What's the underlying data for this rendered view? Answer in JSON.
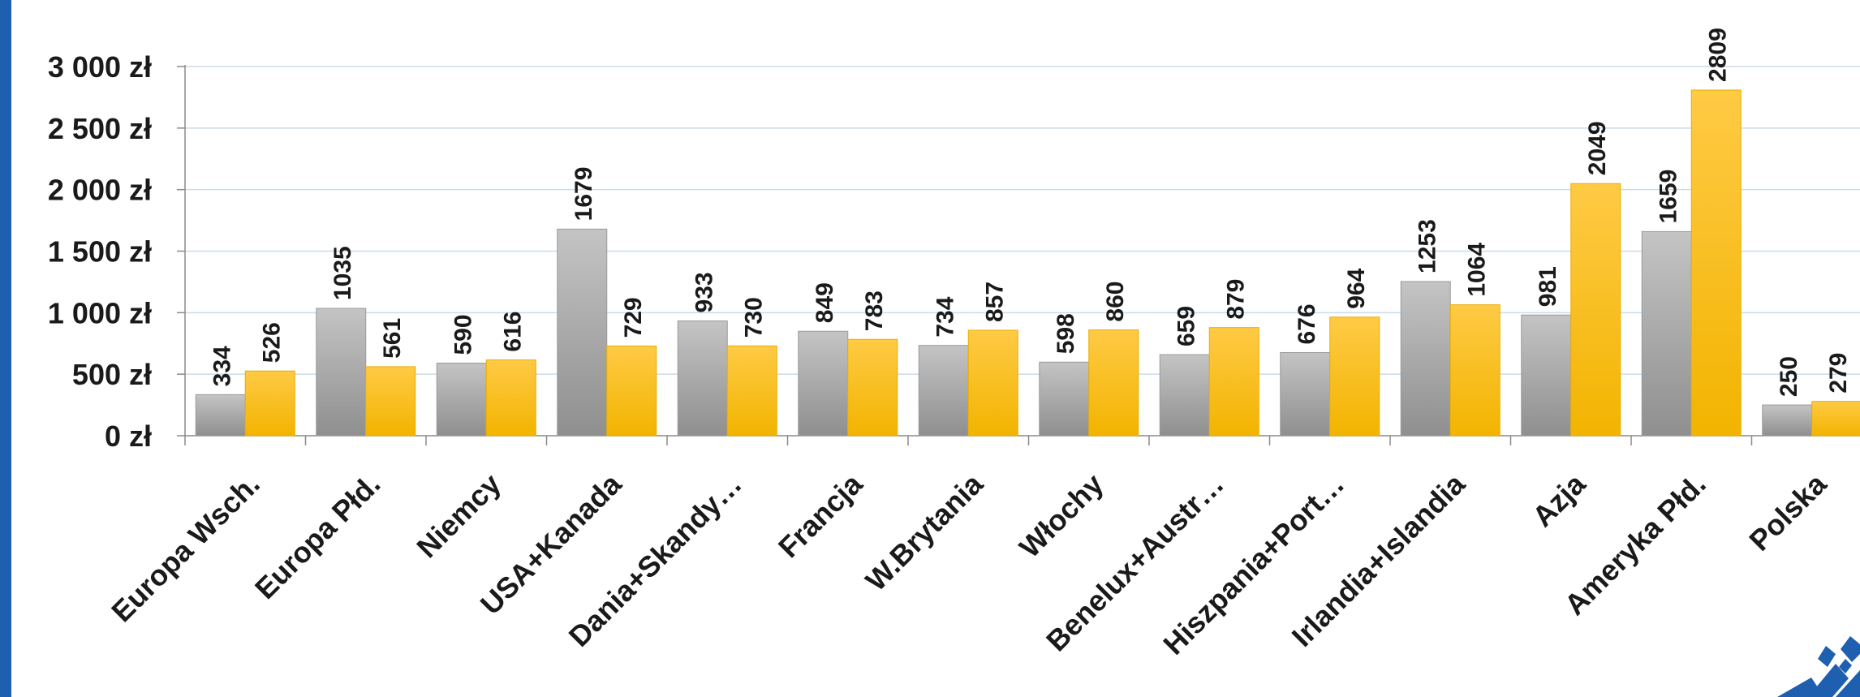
{
  "chart_data": {
    "type": "bar",
    "categories": [
      "Europa Wsch.",
      "Europa Płd.",
      "Niemcy",
      "USA+Kanada",
      "Dania+Skandy…",
      "Francja",
      "W.Brytania",
      "Włochy",
      "Benelux+Austr…",
      "Hiszpania+Port…",
      "Irlandia+Islandia",
      "Azja",
      "Ameryka Płd.",
      "Polska"
    ],
    "series": [
      {
        "values": [
          334,
          1035,
          590,
          1679,
          933,
          849,
          734,
          598,
          659,
          676,
          1253,
          981,
          1659,
          250
        ],
        "color": "#a6a6a6"
      },
      {
        "values": [
          526,
          561,
          616,
          729,
          730,
          783,
          857,
          860,
          879,
          964,
          1064,
          2049,
          2809,
          279
        ],
        "color": "#ffc000"
      }
    ],
    "y_ticks": [
      "0 zł",
      "500 zł",
      "1 000 zł",
      "1 500 zł",
      "2 000 zł",
      "2 500 zł",
      "3 000 zł"
    ],
    "ylim": [
      0,
      3000
    ],
    "grid": true,
    "data_labels": true
  },
  "colors": {
    "accent": "#1f5fb0",
    "gray_series": "#a6a6a6",
    "gold_series": "#ffc000"
  }
}
